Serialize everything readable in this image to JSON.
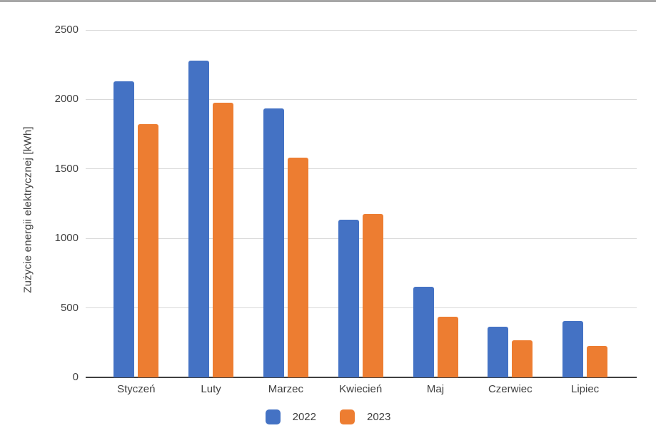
{
  "page": {
    "background": "#ffffff",
    "top_border_color": "#a6a6a6"
  },
  "colors": {
    "series_2022": "#4472c4",
    "series_2023": "#ed7d31",
    "gridline": "#d9d9d9",
    "axis_line": "#404040",
    "text": "#404040"
  },
  "chart_data": {
    "type": "bar",
    "title": "",
    "xlabel": "",
    "ylabel": "Zużycie energii elektrycznej [kWh]",
    "categories": [
      "Styczeń",
      "Luty",
      "Marzec",
      "Kwiecień",
      "Maj",
      "Czerwiec",
      "Lipiec"
    ],
    "series": [
      {
        "name": "2022",
        "color": "#4472c4",
        "values": [
          2130,
          2280,
          1935,
          1135,
          650,
          365,
          405
        ]
      },
      {
        "name": "2023",
        "color": "#ed7d31",
        "values": [
          1820,
          1975,
          1580,
          1175,
          435,
          265,
          225
        ]
      }
    ],
    "ylim": [
      0,
      2500
    ],
    "yticks": [
      0,
      500,
      1000,
      1500,
      2000,
      2500
    ],
    "grid": true,
    "legend_position": "bottom"
  }
}
